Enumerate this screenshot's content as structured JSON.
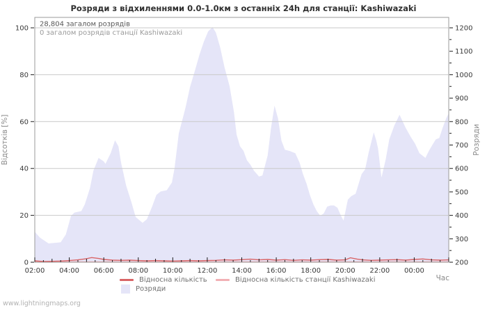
{
  "page": {
    "watermark": "www.lightningmaps.org"
  },
  "chart_data": {
    "type": "area",
    "title": "Розряди з відхиленнями 0.0-1.0км з останніх 24h для станції: Kashiwazaki",
    "annotations": [
      "28,804 загалом розрядів",
      "0 загалом розрядів станції Kashiwazaki"
    ],
    "x_axis": {
      "label": "Час",
      "start_label": "02:00",
      "span_hours": 24,
      "tick_hours": [
        0,
        2,
        4,
        6,
        8,
        10,
        12,
        14,
        16,
        18,
        20,
        22
      ],
      "tick_labels": [
        "02:00",
        "04:00",
        "06:00",
        "08:00",
        "10:00",
        "12:00",
        "14:00",
        "16:00",
        "18:00",
        "20:00",
        "22:00",
        "00:00"
      ],
      "minor_tick_minutes": 30
    },
    "y_left": {
      "label": "Відсотків  [%]",
      "min": 0,
      "max": 100,
      "ticks": [
        0,
        20,
        40,
        60,
        80,
        100
      ],
      "grid": true
    },
    "y_right": {
      "label": "Розряди",
      "min": 200,
      "max": 1200,
      "ticks": [
        200,
        300,
        400,
        500,
        600,
        700,
        800,
        900,
        1000,
        1100,
        1200
      ],
      "minor_step": 50,
      "note": "count = 200 + 10 × percent_of_left_axis"
    },
    "colors": {
      "area_fill": "#e5e5f8",
      "relative_line": "#d96466",
      "station_line": "#f2b0b4",
      "grid": "#c9c9c9",
      "border": "#9a9a9a",
      "tick": "#1a1a1a",
      "tick_text": "#383838",
      "annotation_primary": "#575757",
      "annotation_secondary": "#9a9a9a"
    },
    "legend": {
      "items": [
        {
          "label": "Відносна кількість",
          "swatch": "line",
          "color": "#d96466"
        },
        {
          "label": "Відносна кількість станції Kashiwazaki",
          "swatch": "line",
          "color": "#f2b0b4"
        },
        {
          "label": "Розряди",
          "swatch": "box",
          "color": "#e5e5f8"
        }
      ]
    },
    "series": [
      {
        "name": "Розряди",
        "style": "area",
        "units": "percent_of_max (right axis: 200+10×pct discharges)",
        "points": [
          [
            0,
            13
          ],
          [
            0.3,
            10.5
          ],
          [
            0.8,
            8
          ],
          [
            1.5,
            8.5
          ],
          [
            1.8,
            11.8
          ],
          [
            2.1,
            19.8
          ],
          [
            2.3,
            21.2
          ],
          [
            2.7,
            21.8
          ],
          [
            2.9,
            24.7
          ],
          [
            3.2,
            31.6
          ],
          [
            3.4,
            39.1
          ],
          [
            3.7,
            44.5
          ],
          [
            4.0,
            43.0
          ],
          [
            4.1,
            42.0
          ],
          [
            4.4,
            46.5
          ],
          [
            4.65,
            52.0
          ],
          [
            4.85,
            49.5
          ],
          [
            5.0,
            42.5
          ],
          [
            5.3,
            32.6
          ],
          [
            5.6,
            25.7
          ],
          [
            5.85,
            19.3
          ],
          [
            6.25,
            16.8
          ],
          [
            6.5,
            18.3
          ],
          [
            6.8,
            23.7
          ],
          [
            7.05,
            28.7
          ],
          [
            7.3,
            30.2
          ],
          [
            7.65,
            30.7
          ],
          [
            7.95,
            34.0
          ],
          [
            8.1,
            40.0
          ],
          [
            8.35,
            55.0
          ],
          [
            8.6,
            62.0
          ],
          [
            8.75,
            66.3
          ],
          [
            9.0,
            74.7
          ],
          [
            9.3,
            82.2
          ],
          [
            9.55,
            88.6
          ],
          [
            9.8,
            94.1
          ],
          [
            10.05,
            98.5
          ],
          [
            10.3,
            100.3
          ],
          [
            10.5,
            98.0
          ],
          [
            10.75,
            91.6
          ],
          [
            11.0,
            83.2
          ],
          [
            11.3,
            75.0
          ],
          [
            11.55,
            64.0
          ],
          [
            11.7,
            54.4
          ],
          [
            11.9,
            49.5
          ],
          [
            12.1,
            47.5
          ],
          [
            12.3,
            43.5
          ],
          [
            12.5,
            41.6
          ],
          [
            12.7,
            39.1
          ],
          [
            13.0,
            36.6
          ],
          [
            13.2,
            37.0
          ],
          [
            13.5,
            45.5
          ],
          [
            13.7,
            57.4
          ],
          [
            13.9,
            66.8
          ],
          [
            14.1,
            61.4
          ],
          [
            14.3,
            51.9
          ],
          [
            14.5,
            48.0
          ],
          [
            14.8,
            47.4
          ],
          [
            15.1,
            46.5
          ],
          [
            15.35,
            42.5
          ],
          [
            15.55,
            37.6
          ],
          [
            15.75,
            33.6
          ],
          [
            15.95,
            28.7
          ],
          [
            16.15,
            24.7
          ],
          [
            16.35,
            21.8
          ],
          [
            16.55,
            19.8
          ],
          [
            16.75,
            20.8
          ],
          [
            16.95,
            23.7
          ],
          [
            17.15,
            24.2
          ],
          [
            17.35,
            24.2
          ],
          [
            17.55,
            23.2
          ],
          [
            17.75,
            19.8
          ],
          [
            17.9,
            17.8
          ],
          [
            18.15,
            26.7
          ],
          [
            18.35,
            28.2
          ],
          [
            18.6,
            29.2
          ],
          [
            18.95,
            37.6
          ],
          [
            19.15,
            39.6
          ],
          [
            19.35,
            46.5
          ],
          [
            19.65,
            55.4
          ],
          [
            19.8,
            51.9
          ],
          [
            19.9,
            48.5
          ],
          [
            20.1,
            36.1
          ],
          [
            20.35,
            44.0
          ],
          [
            20.55,
            52.4
          ],
          [
            20.85,
            58.4
          ],
          [
            21.15,
            62.9
          ],
          [
            21.5,
            57.4
          ],
          [
            21.8,
            53.4
          ],
          [
            22.05,
            50.5
          ],
          [
            22.3,
            46.5
          ],
          [
            22.65,
            44.5
          ],
          [
            22.85,
            47.5
          ],
          [
            23.05,
            50.0
          ],
          [
            23.25,
            52.4
          ],
          [
            23.45,
            53.0
          ],
          [
            23.65,
            57.4
          ],
          [
            23.85,
            61.4
          ],
          [
            24,
            63.5
          ]
        ]
      },
      {
        "name": "Відносна кількість",
        "style": "line",
        "units": "percent",
        "points": [
          [
            0,
            0.6
          ],
          [
            0.5,
            0.3
          ],
          [
            1,
            0.4
          ],
          [
            1.5,
            0.5
          ],
          [
            2,
            0.7
          ],
          [
            2.5,
            1.0
          ],
          [
            3,
            1.5
          ],
          [
            3.3,
            2.0
          ],
          [
            3.7,
            1.6
          ],
          [
            4,
            1.2
          ],
          [
            4.5,
            0.9
          ],
          [
            5,
            0.8
          ],
          [
            5.5,
            0.9
          ],
          [
            6,
            0.7
          ],
          [
            6.5,
            0.6
          ],
          [
            7,
            0.7
          ],
          [
            7.5,
            0.6
          ],
          [
            8,
            0.5
          ],
          [
            8.5,
            0.6
          ],
          [
            9,
            0.7
          ],
          [
            9.5,
            0.6
          ],
          [
            10,
            0.7
          ],
          [
            10.5,
            0.8
          ],
          [
            11,
            1.0
          ],
          [
            11.5,
            0.9
          ],
          [
            12,
            1.1
          ],
          [
            12.5,
            1.3
          ],
          [
            13,
            1.0
          ],
          [
            13.5,
            1.2
          ],
          [
            14,
            0.9
          ],
          [
            14.5,
            1.1
          ],
          [
            15,
            0.8
          ],
          [
            15.5,
            1.0
          ],
          [
            16,
            0.9
          ],
          [
            16.5,
            1.1
          ],
          [
            17,
            1.2
          ],
          [
            17.5,
            0.9
          ],
          [
            18,
            1.0
          ],
          [
            18.3,
            1.9
          ],
          [
            18.7,
            1.3
          ],
          [
            19,
            1.0
          ],
          [
            19.5,
            0.8
          ],
          [
            20,
            0.9
          ],
          [
            20.5,
            1.0
          ],
          [
            21,
            1.1
          ],
          [
            21.5,
            0.9
          ],
          [
            22,
            1.2
          ],
          [
            22.5,
            1.4
          ],
          [
            23,
            1.0
          ],
          [
            23.5,
            0.9
          ],
          [
            24,
            1.0
          ]
        ]
      },
      {
        "name": "Відносна кількість станції Kashiwazaki",
        "style": "line",
        "units": "percent",
        "points": [
          [
            0,
            0.15
          ],
          [
            24,
            0.15
          ]
        ]
      }
    ]
  }
}
